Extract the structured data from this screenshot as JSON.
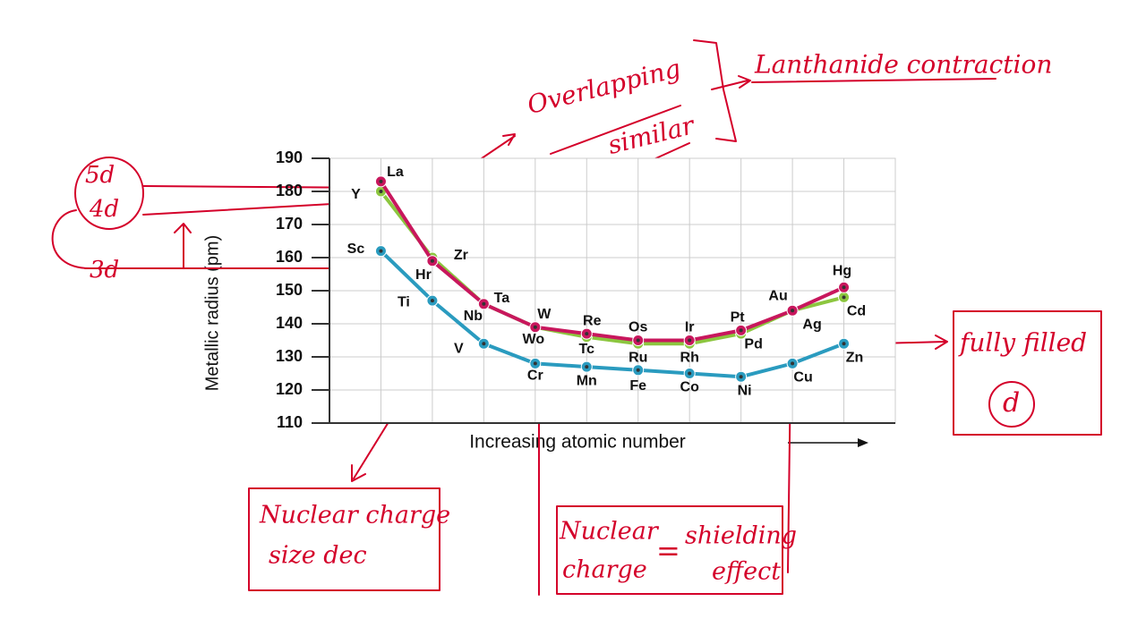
{
  "chart_data": {
    "type": "line",
    "y_label": "Metallic radius (pm)",
    "x_label": "Increasing atomic number",
    "categories": [
      null,
      null,
      null,
      null,
      null,
      null,
      null,
      null,
      null,
      null
    ],
    "ylim": [
      110,
      190
    ],
    "yticks": [
      110,
      120,
      130,
      140,
      150,
      160,
      170,
      180,
      190
    ],
    "grid": true,
    "series": [
      {
        "name": "3d",
        "color": "#2a9bbf",
        "labels": [
          "Sc",
          "Ti",
          "V",
          "Cr",
          "Mn",
          "Fe",
          "Co",
          "Ni",
          "Cu",
          "Zn"
        ],
        "values": [
          162,
          147,
          134,
          128,
          127,
          126,
          125,
          124,
          128,
          134
        ]
      },
      {
        "name": "4d",
        "color": "#8cc63f",
        "labels": [
          "Y",
          "Zr",
          "Nb",
          "Wo",
          "Tc",
          "Ru",
          "Rh",
          "Pd",
          "Ag",
          "Cd"
        ],
        "values": [
          180,
          160,
          146,
          139,
          136,
          134,
          134,
          137,
          144,
          148
        ]
      },
      {
        "name": "5d",
        "color": "#c8175d",
        "labels": [
          "La",
          "Hr",
          "Ta",
          "W",
          "Re",
          "Os",
          "Ir",
          "Pt",
          "Au",
          "Hg"
        ],
        "values": [
          183,
          159,
          146,
          139,
          137,
          135,
          135,
          138,
          144,
          151
        ]
      }
    ],
    "annotations": {
      "overlap": "Overlapping",
      "similar": "similar",
      "lanthanide": "Lanthanide contraction",
      "nuclear_size": [
        "Nuclear charge",
        "size dec"
      ],
      "nuclear_shield_left": [
        "Nuclear",
        "charge"
      ],
      "equals": "=",
      "nuclear_shield_right": [
        "shielding",
        "effect"
      ],
      "fully": "fully filled",
      "d": "d"
    }
  }
}
